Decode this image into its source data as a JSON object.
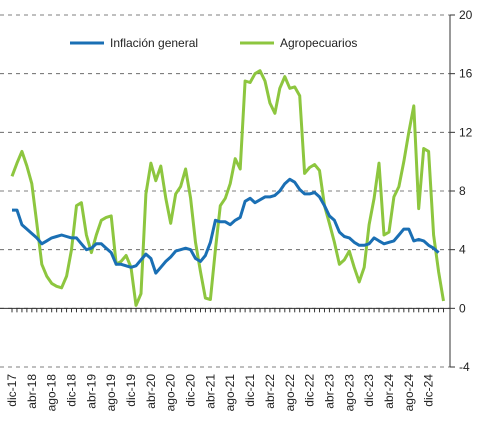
{
  "chart_data": {
    "type": "line",
    "categories": [
      "dic-17",
      null,
      null,
      null,
      "abr-18",
      null,
      null,
      null,
      "ago-18",
      null,
      null,
      null,
      "dic-18",
      null,
      null,
      null,
      "abr-19",
      null,
      null,
      null,
      "ago-19",
      null,
      null,
      null,
      "dic-19",
      null,
      null,
      null,
      "abr-20",
      null,
      null,
      null,
      "ago-20",
      null,
      null,
      null,
      "dic-20",
      null,
      null,
      null,
      "abr-21",
      null,
      null,
      null,
      "ago-21",
      null,
      null,
      null,
      "dic-21",
      null,
      null,
      null,
      "abr-22",
      null,
      null,
      null,
      "ago-22",
      null,
      null,
      null,
      "dic-22",
      null,
      null,
      null,
      "abr-23",
      null,
      null,
      null,
      "ago-23",
      null,
      null,
      null,
      "dic-23",
      null,
      null,
      null,
      "abr-24",
      null,
      null,
      null,
      "ago-24",
      null,
      null,
      null,
      "dic-24",
      null,
      null,
      null
    ],
    "series": [
      {
        "name": "Inflación general",
        "color": "#1a6fb4",
        "values": [
          6.7,
          6.7,
          5.7,
          5.4,
          5.1,
          4.8,
          4.4,
          4.6,
          4.8,
          4.9,
          5.0,
          4.9,
          4.8,
          4.8,
          4.4,
          4.0,
          4.1,
          4.4,
          4.4,
          4.1,
          3.8,
          3.0,
          3.0,
          2.9,
          2.8,
          2.9,
          3.3,
          3.7,
          3.4,
          2.4,
          2.8,
          3.2,
          3.5,
          3.9,
          4.0,
          4.1,
          4.0,
          3.4,
          3.2,
          3.6,
          4.5,
          6.0,
          5.9,
          5.9,
          5.7,
          6.0,
          6.2,
          7.3,
          7.5,
          7.2,
          7.4,
          7.6,
          7.6,
          7.7,
          8.0,
          8.5,
          8.8,
          8.6,
          8.1,
          7.8,
          7.8,
          7.9,
          7.6,
          7.0,
          6.3,
          6.0,
          5.2,
          4.9,
          4.8,
          4.5,
          4.3,
          4.3,
          4.4,
          4.8,
          4.6,
          4.4,
          4.5,
          4.6,
          5.0,
          5.4,
          5.4,
          4.6,
          4.7,
          4.6,
          4.3,
          4.1,
          3.8,
          null
        ]
      },
      {
        "name": "Agropecuarios",
        "color": "#8dc63f",
        "values": [
          9.0,
          9.9,
          10.7,
          9.7,
          8.5,
          5.8,
          3.0,
          2.2,
          1.7,
          1.5,
          1.4,
          2.2,
          4.0,
          7.0,
          7.2,
          5.0,
          3.8,
          5.0,
          6.0,
          6.2,
          6.3,
          3.0,
          3.2,
          3.6,
          2.8,
          0.2,
          1.0,
          7.8,
          9.9,
          8.7,
          9.7,
          7.5,
          5.8,
          7.8,
          8.3,
          9.5,
          7.5,
          4.5,
          2.5,
          0.7,
          0.6,
          4.0,
          7.0,
          7.5,
          8.5,
          10.2,
          9.5,
          15.5,
          15.4,
          16.0,
          16.2,
          15.5,
          14.0,
          13.3,
          15.0,
          15.8,
          15.0,
          15.1,
          14.5,
          9.2,
          9.6,
          9.8,
          9.4,
          7.0,
          5.8,
          4.5,
          3.0,
          3.3,
          3.9,
          2.8,
          1.8,
          2.8,
          5.7,
          7.5,
          9.9,
          5.0,
          5.2,
          7.6,
          8.3,
          10.0,
          12.0,
          13.8,
          6.8,
          10.9,
          10.7,
          5.0,
          2.5,
          0.5
        ]
      }
    ],
    "ylim": [
      -4,
      20
    ],
    "yticks": [
      -4,
      0,
      4,
      8,
      12,
      16,
      20
    ],
    "grid": true,
    "legend": "top"
  }
}
